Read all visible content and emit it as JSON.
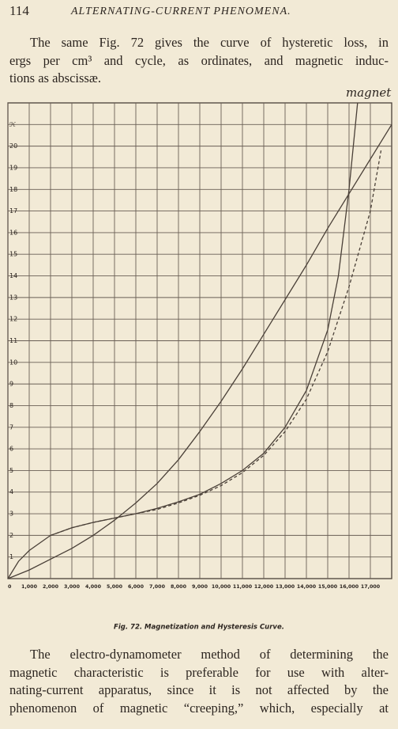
{
  "header": {
    "page_number": "114",
    "running_title": "ALTERNATING-CURRENT PHENOMENA."
  },
  "paragraphs": [
    {
      "lines": [
        "The same Fig. 72 gives the curve of hysteretic loss, in",
        "ergs per cm³ and cycle, as ordinates, and magnetic induc-",
        "tions as abscissæ."
      ]
    },
    {
      "lines": [
        "The electro-dynamometer method of determining the",
        "magnetic characteristic is preferable for use with alter-",
        "nating-current apparatus, since it is not affected by the",
        "phenomenon of magnetic “creeping,” which, especially at"
      ]
    }
  ],
  "handwriting": "magnet",
  "figure": {
    "caption": "Fig. 72.  Magnetization and Hysteresis Curve."
  },
  "chart_data": {
    "type": "line",
    "grid": true,
    "xlim": [
      0,
      18000
    ],
    "ylim": [
      0,
      22
    ],
    "xticks": [
      {
        "value": 0,
        "label": "0"
      },
      {
        "value": 1000,
        "label": "1,000"
      },
      {
        "value": 2000,
        "label": "2,000"
      },
      {
        "value": 3000,
        "label": "3,000"
      },
      {
        "value": 4000,
        "label": "4,000"
      },
      {
        "value": 5000,
        "label": "5,000"
      },
      {
        "value": 6000,
        "label": "6,000"
      },
      {
        "value": 7000,
        "label": "7,000"
      },
      {
        "value": 8000,
        "label": "8,000"
      },
      {
        "value": 9000,
        "label": "9,000"
      },
      {
        "value": 10000,
        "label": "10,000"
      },
      {
        "value": 11000,
        "label": "11,000"
      },
      {
        "value": 12000,
        "label": "12,000"
      },
      {
        "value": 13000,
        "label": "13,000"
      },
      {
        "value": 14000,
        "label": "14,000"
      },
      {
        "value": 15000,
        "label": "15,000"
      },
      {
        "value": 16000,
        "label": "16,000"
      },
      {
        "value": 17000,
        "label": "17,000"
      }
    ],
    "yticks": [
      1,
      2,
      3,
      4,
      5,
      6,
      7,
      8,
      9,
      10,
      11,
      12,
      13,
      14,
      15,
      16,
      17,
      18,
      19,
      20,
      {
        "value": 21,
        "label": "ℋ"
      }
    ],
    "series": [
      {
        "color": "#4a4038",
        "dashed": false,
        "x": [
          0,
          500,
          1000,
          2000,
          3000,
          4000,
          5000,
          6000,
          7000,
          8000,
          9000,
          10000,
          11000,
          12000,
          13000,
          14000,
          15000,
          15500,
          16000,
          16400
        ],
        "values": [
          0,
          0.8,
          1.3,
          2.0,
          2.35,
          2.6,
          2.8,
          3.0,
          3.25,
          3.55,
          3.9,
          4.4,
          5.0,
          5.8,
          7.0,
          8.7,
          11.5,
          14,
          18,
          22
        ]
      },
      {
        "color": "#4a4038",
        "dashed": true,
        "x": [
          2000,
          3000,
          4000,
          5000,
          6000,
          7000,
          8000,
          9000,
          10000,
          11000,
          12000,
          13000,
          14000,
          15000,
          16000,
          17000,
          17500
        ],
        "values": [
          2.0,
          2.35,
          2.6,
          2.8,
          3.0,
          3.2,
          3.5,
          3.85,
          4.3,
          4.9,
          5.7,
          6.8,
          8.3,
          10.5,
          13.5,
          17,
          19.8
        ]
      },
      {
        "color": "#4a4038",
        "dashed": false,
        "x": [
          0,
          1000,
          2000,
          3000,
          4000,
          5000,
          6000,
          7000,
          8000,
          9000,
          10000,
          11000,
          12000,
          13000,
          14000,
          15000,
          16000,
          17000,
          18000
        ],
        "values": [
          0,
          0.4,
          0.9,
          1.4,
          2.0,
          2.7,
          3.5,
          4.4,
          5.5,
          6.8,
          8.2,
          9.7,
          11.3,
          12.9,
          14.5,
          16.2,
          17.8,
          19.4,
          21
        ]
      }
    ]
  }
}
